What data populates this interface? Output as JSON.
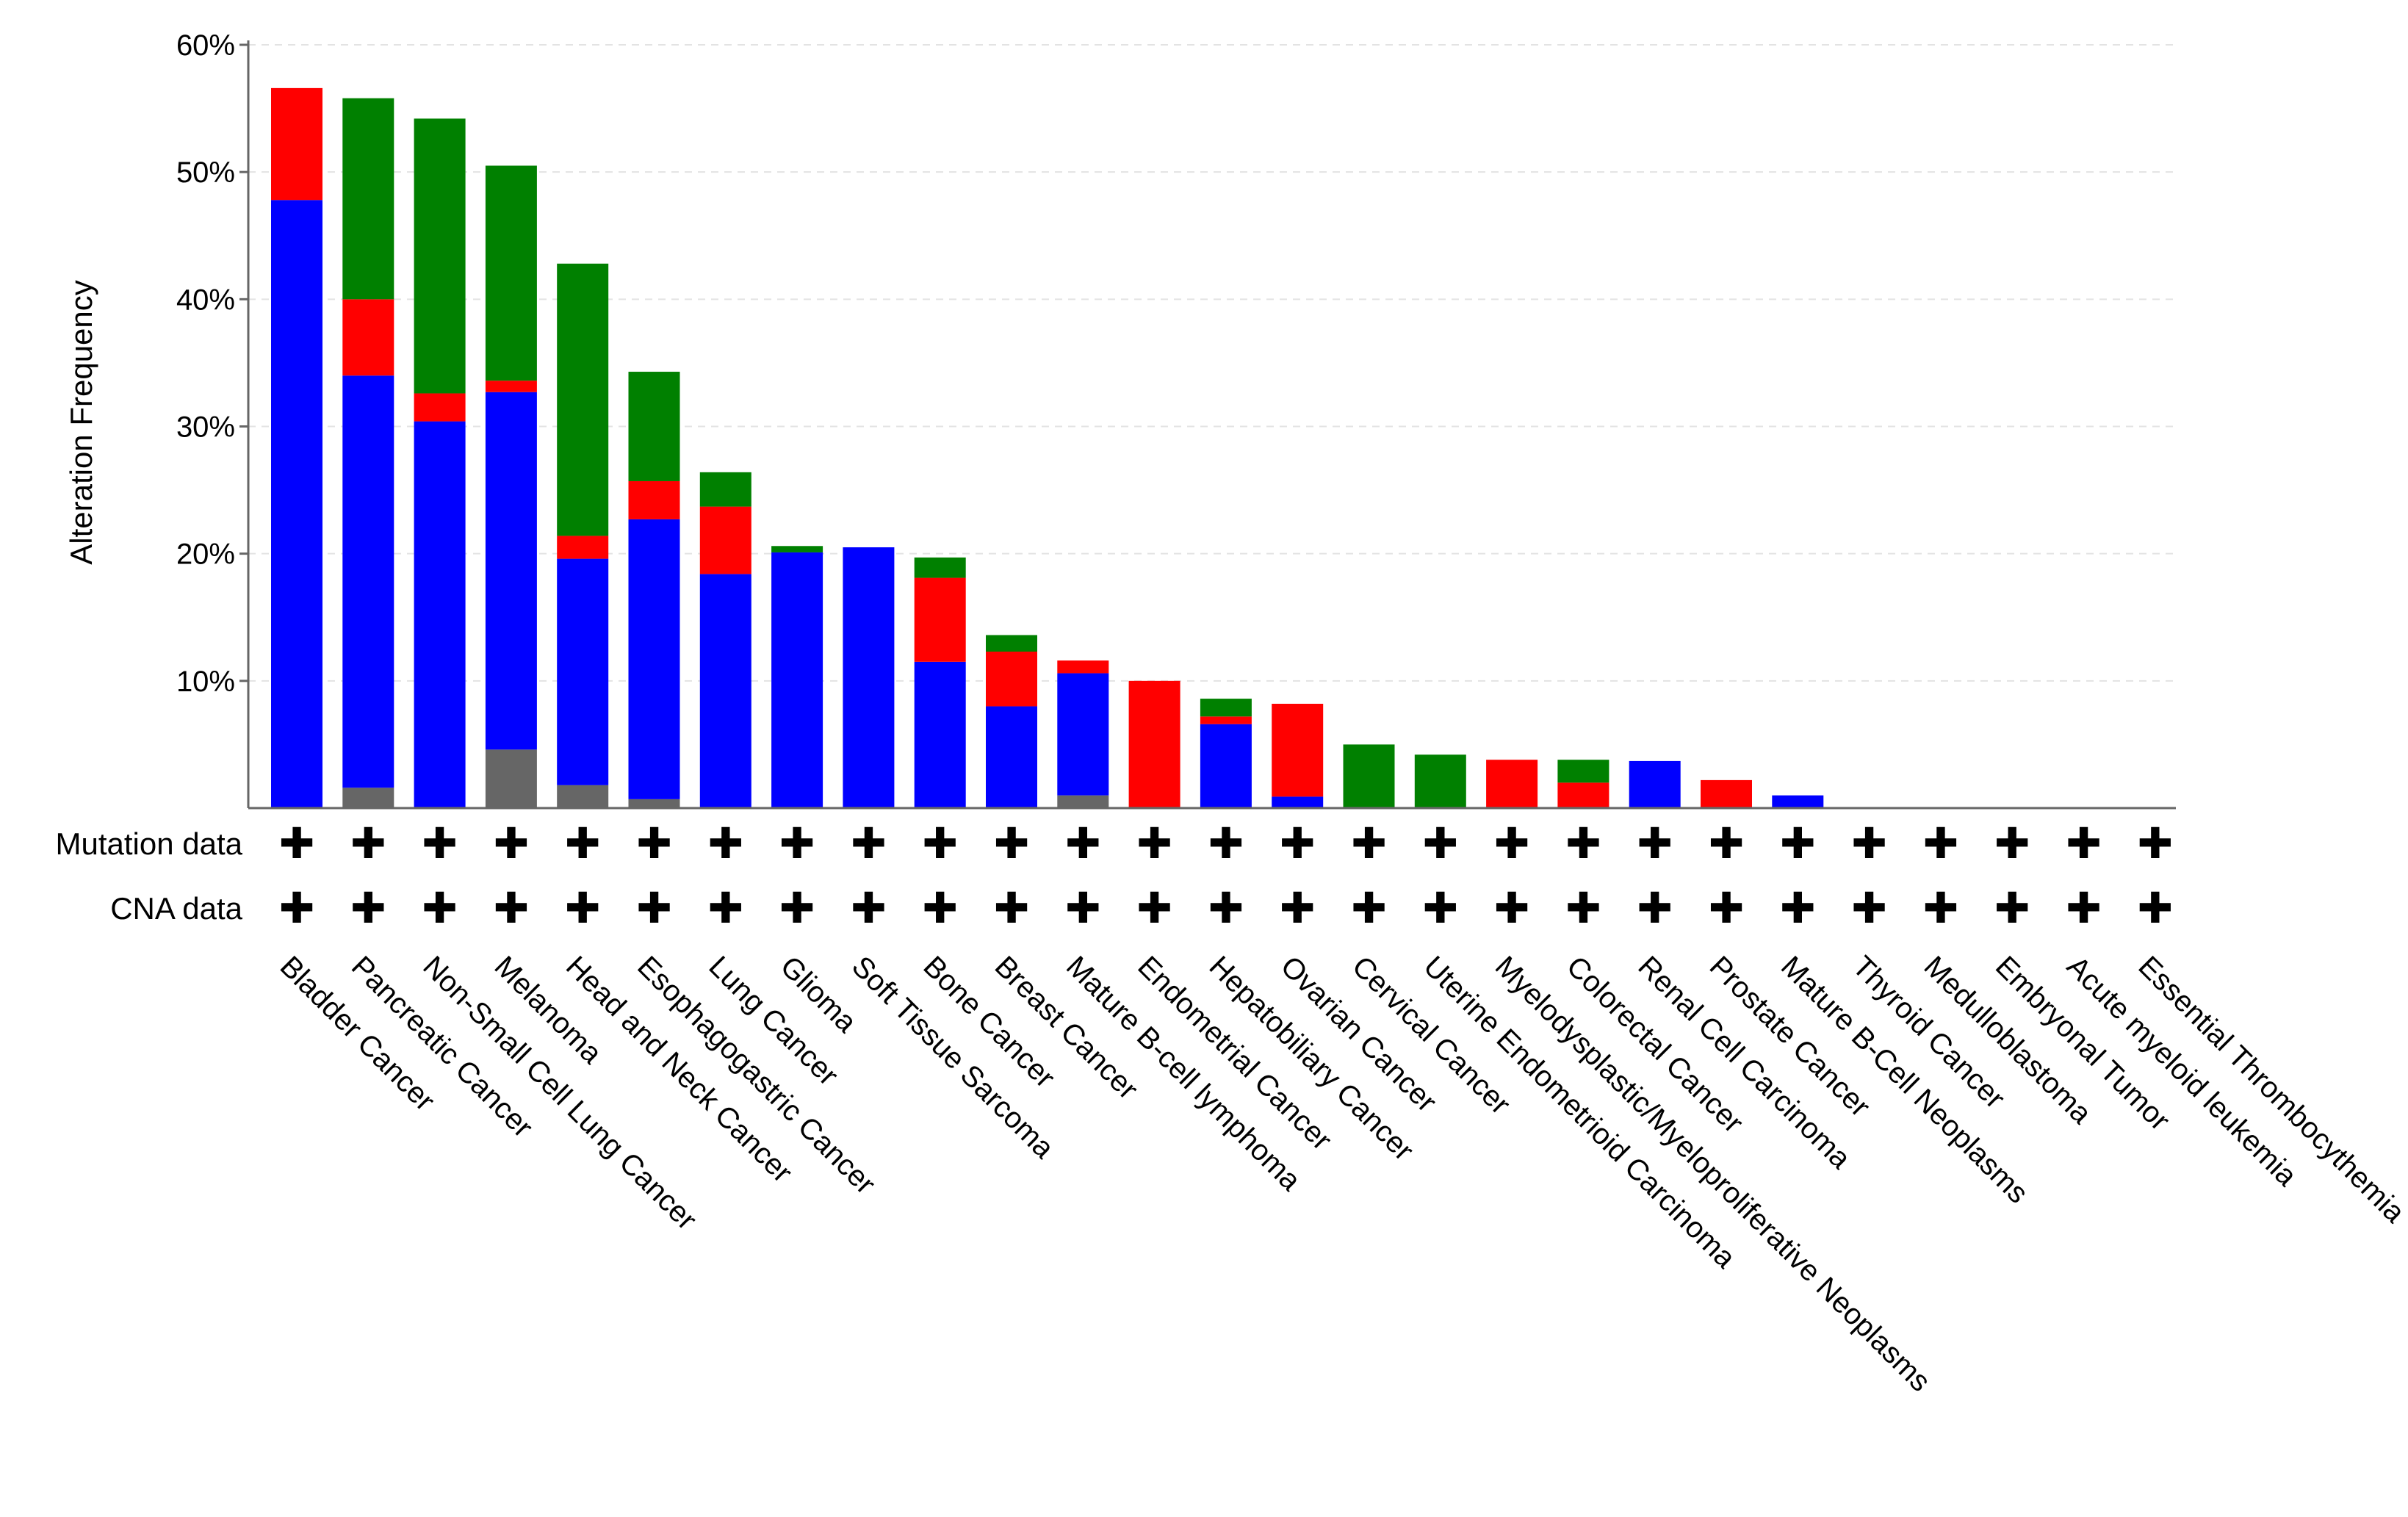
{
  "chart_data": {
    "type": "bar",
    "stacked": true,
    "ylabel": "Alteration Frequency",
    "ylim": [
      0,
      60
    ],
    "yticks": [
      10,
      20,
      30,
      40,
      50,
      60
    ],
    "ytick_labels": [
      "10%",
      "20%",
      "30%",
      "40%",
      "50%",
      "60%"
    ],
    "grid": "horizontal dashed",
    "categories": [
      "Bladder Cancer",
      "Pancreatic Cancer",
      "Non-Small Cell Lung Cancer",
      "Melanoma",
      "Head and Neck Cancer",
      "Esophagogastric Cancer",
      "Lung Cancer",
      "Glioma",
      "Soft Tissue Sarcoma",
      "Bone Cancer",
      "Breast Cancer",
      "Mature B-cell lymphoma",
      "Endometrial Cancer",
      "Hepatobiliary Cancer",
      "Ovarian Cancer",
      "Cervical Cancer",
      "Uterine Endometrioid Carcinoma",
      "Myelodysplastic/Myeloproliferative Neoplasms",
      "Colorectal Cancer",
      "Renal Cell Carcinoma",
      "Prostate Cancer",
      "Mature B-Cell Neoplasms",
      "Thyroid Cancer",
      "Medulloblastoma",
      "Embryonal Tumor",
      "Acute myeloid leukemia",
      "Essential Thrombocythemia"
    ],
    "series": [
      {
        "name": "gray",
        "color": "#666666",
        "values": [
          0,
          1.6,
          0,
          4.6,
          1.8,
          0.7,
          0,
          0,
          0,
          0,
          0,
          1.0,
          0,
          0,
          0,
          0,
          0,
          0,
          0,
          0,
          0,
          0,
          0,
          0,
          0,
          0,
          0
        ]
      },
      {
        "name": "blue",
        "color": "#0000ff",
        "values": [
          47.8,
          32.4,
          30.4,
          28.1,
          17.8,
          22.0,
          18.4,
          20.1,
          20.5,
          11.5,
          8.0,
          9.6,
          0,
          6.6,
          0.9,
          0,
          0,
          0,
          0,
          3.7,
          0,
          1.0,
          0,
          0,
          0,
          0,
          0
        ]
      },
      {
        "name": "red",
        "color": "#ff0000",
        "values": [
          8.8,
          6.0,
          2.2,
          0.9,
          1.8,
          3.0,
          5.3,
          0,
          0,
          6.6,
          4.3,
          1.0,
          10.0,
          0.6,
          7.3,
          0,
          0,
          3.8,
          2.0,
          0,
          2.2,
          0,
          0,
          0,
          0,
          0,
          0
        ]
      },
      {
        "name": "green",
        "color": "#008000",
        "values": [
          0,
          15.8,
          21.6,
          16.9,
          21.4,
          8.6,
          2.7,
          0.5,
          0,
          1.6,
          1.3,
          0,
          0,
          1.4,
          0,
          5.0,
          4.2,
          0,
          1.8,
          0,
          0,
          0,
          0,
          0,
          0,
          0,
          0
        ]
      }
    ],
    "rows": [
      {
        "label": "Mutation data",
        "mark": "✚"
      },
      {
        "label": "CNA data",
        "mark": "✚"
      }
    ]
  }
}
